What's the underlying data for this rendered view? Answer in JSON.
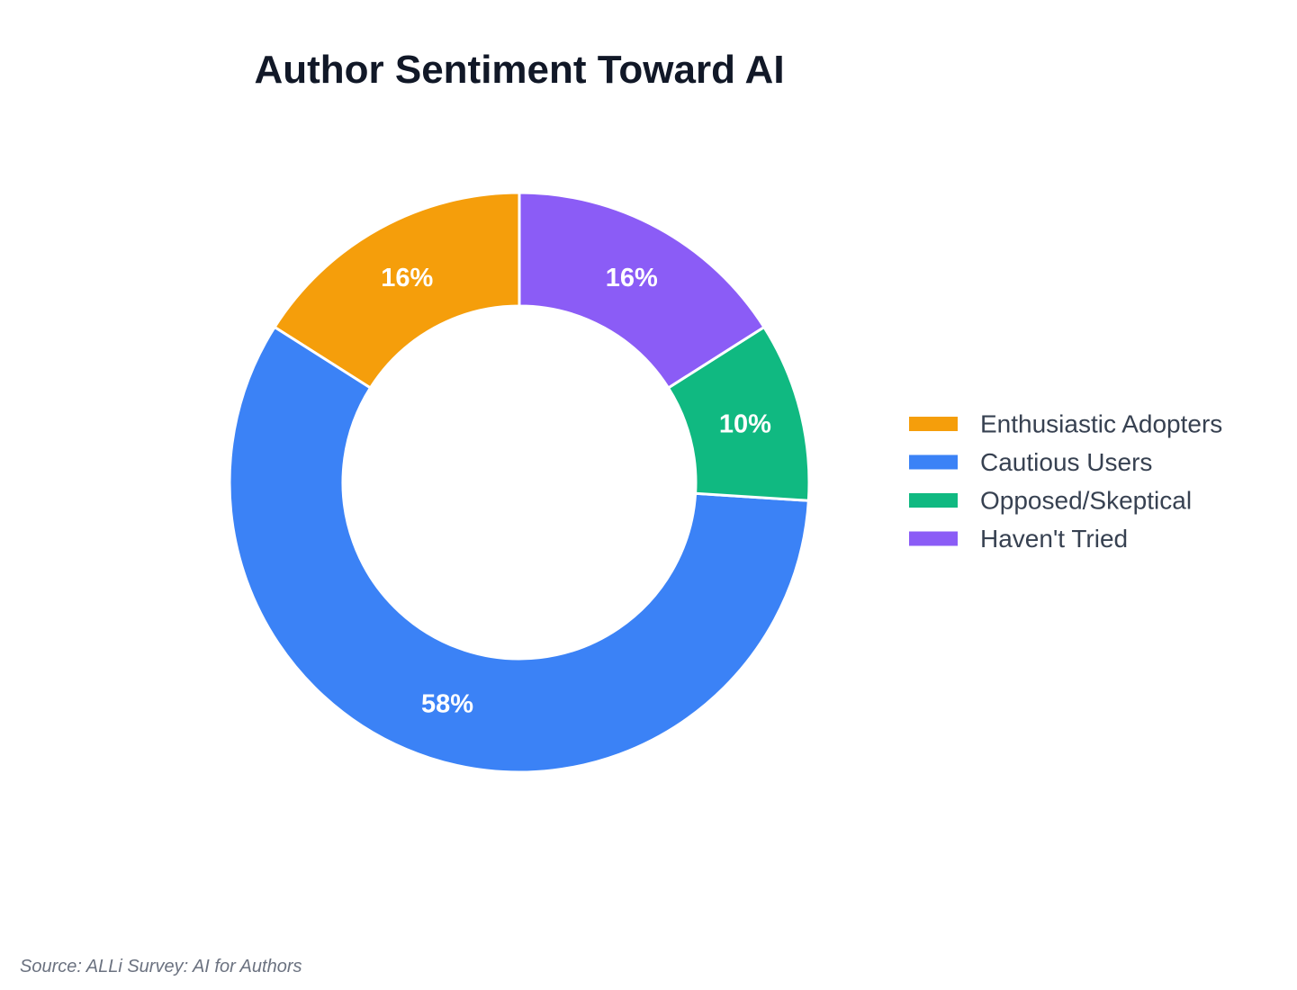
{
  "chart_data": {
    "type": "pie",
    "title": "Author Sentiment Toward AI",
    "categories": [
      "Enthusiastic Adopters",
      "Cautious Users",
      "Opposed/Skeptical",
      "Haven't Tried"
    ],
    "values": [
      16,
      58,
      10,
      16
    ],
    "data_labels": [
      "16%",
      "58%",
      "10%",
      "16%"
    ],
    "colors": [
      "#f59e0b",
      "#3b82f6",
      "#10b981",
      "#8b5cf6"
    ],
    "donut": true,
    "legend_position": "right"
  },
  "source": "Source: ALLi Survey: AI for Authors"
}
